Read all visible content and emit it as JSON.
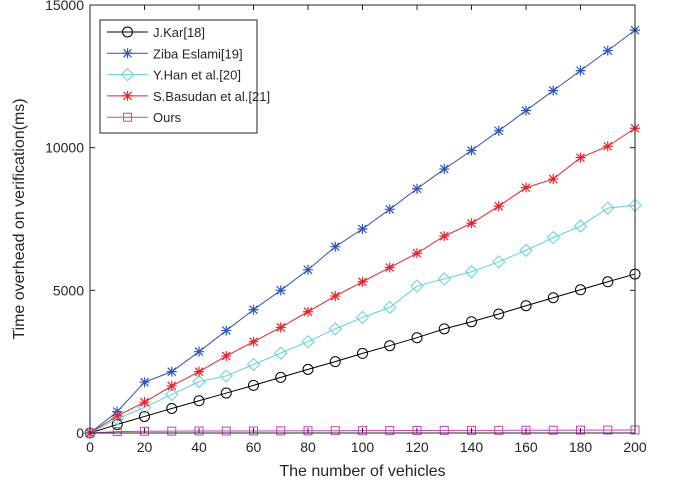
{
  "chart_data": {
    "type": "line",
    "xlabel": "The number of vehicles",
    "ylabel": "Time overhead on verification(ms)",
    "xlim": [
      0,
      200
    ],
    "ylim": [
      0,
      15000
    ],
    "xticks": [
      0,
      20,
      40,
      60,
      80,
      100,
      120,
      140,
      160,
      180,
      200
    ],
    "xtick_labels": [
      "0",
      "20",
      "40",
      "60",
      "80",
      "100",
      "120",
      "140",
      "160",
      "180",
      "200"
    ],
    "yticks": [
      0,
      5000,
      10000,
      15000
    ],
    "ytick_labels": [
      "0",
      "5000",
      "10000",
      "15000"
    ],
    "grid": false,
    "legend_position": "top-left",
    "x": [
      0,
      10,
      20,
      30,
      40,
      50,
      60,
      70,
      80,
      90,
      100,
      110,
      120,
      130,
      140,
      150,
      160,
      170,
      180,
      190,
      200
    ],
    "series": [
      {
        "name": "J.Kar[18]",
        "color": "#000000",
        "marker": "circle",
        "values": [
          0,
          300,
          580,
          860,
          1130,
          1400,
          1670,
          1950,
          2230,
          2500,
          2790,
          3060,
          3340,
          3650,
          3900,
          4170,
          4460,
          4740,
          5020,
          5300,
          5570
        ]
      },
      {
        "name": "Ziba Eslami[19]",
        "color": "#2e56b8",
        "marker": "asterisk",
        "values": [
          0,
          750,
          1780,
          2150,
          2850,
          3590,
          4320,
          5000,
          5720,
          6530,
          7150,
          7840,
          8560,
          9250,
          9900,
          10590,
          11300,
          12000,
          12700,
          13400,
          14120
        ]
      },
      {
        "name": "Y.Han et al.[20]",
        "color": "#5ed0e0",
        "marker": "diamond",
        "values": [
          0,
          500,
          900,
          1350,
          1800,
          2000,
          2400,
          2800,
          3200,
          3650,
          4050,
          4400,
          5150,
          5400,
          5650,
          6000,
          6400,
          6850,
          7250,
          7880,
          7980
        ]
      },
      {
        "name": "S.Basudan et al.[21]",
        "color": "#e8232a",
        "marker": "asterisk",
        "values": [
          0,
          600,
          1080,
          1650,
          2150,
          2700,
          3200,
          3700,
          4250,
          4800,
          5300,
          5800,
          6300,
          6900,
          7350,
          7950,
          8600,
          8900,
          9650,
          10050,
          10680
        ]
      },
      {
        "name": "Ours",
        "color": "#c242b8",
        "marker": "square",
        "values": [
          0,
          50,
          60,
          65,
          70,
          70,
          72,
          75,
          78,
          80,
          82,
          85,
          88,
          90,
          92,
          94,
          96,
          98,
          100,
          102,
          105
        ]
      }
    ]
  }
}
